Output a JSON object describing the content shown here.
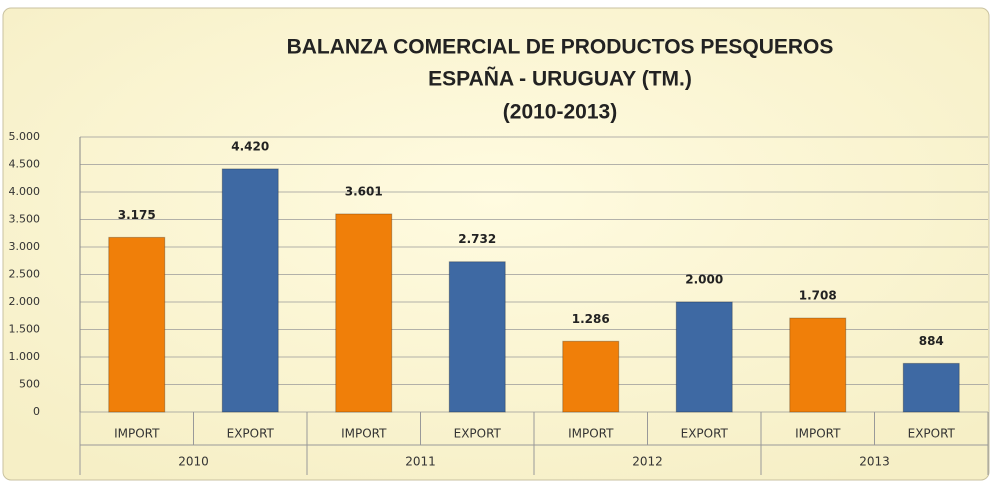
{
  "chart_data": {
    "type": "bar",
    "title": [
      "BALANZA COMERCIAL DE PRODUCTOS PESQUEROS",
      "ESPAÑA -  URUGUAY  (TM.)",
      "(2010-2013)"
    ],
    "categories": [
      "IMPORT",
      "EXPORT",
      "IMPORT",
      "EXPORT",
      "IMPORT",
      "EXPORT",
      "IMPORT",
      "EXPORT"
    ],
    "groups": [
      "2010",
      "2011",
      "2012",
      "2013"
    ],
    "values": [
      3175,
      4420,
      3601,
      2732,
      1286,
      2000,
      1708,
      884
    ],
    "value_labels": [
      "3.175",
      "4.420",
      "3.601",
      "2.732",
      "1.286",
      "2.000",
      "1.708",
      "884"
    ],
    "colors": [
      "#f07f09",
      "#3e69a3",
      "#f07f09",
      "#3e69a3",
      "#f07f09",
      "#3e69a3",
      "#f07f09",
      "#3e69a3"
    ],
    "ylim": [
      0,
      5000
    ],
    "yticks": [
      0,
      500,
      {
        "value": 1000,
        "label": "1.000"
      },
      {
        "value": 1500,
        "label": "1.500"
      },
      {
        "value": 2000,
        "label": "2.000"
      },
      {
        "value": 2500,
        "label": "2.500"
      },
      {
        "value": 3000,
        "label": "3.000"
      },
      {
        "value": 3500,
        "label": "3.500"
      },
      {
        "value": 4000,
        "label": "4.000"
      },
      {
        "value": 4500,
        "label": "4.500"
      },
      {
        "value": 5000,
        "label": "5.000"
      }
    ],
    "grid": true
  }
}
